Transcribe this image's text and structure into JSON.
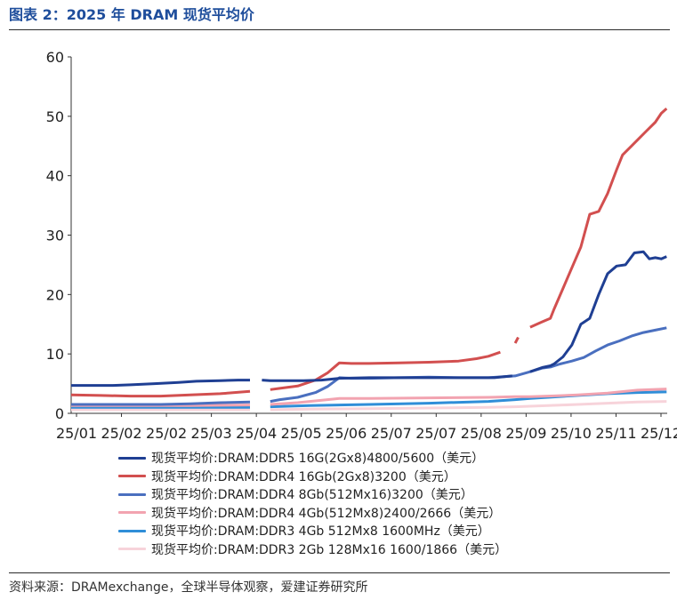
{
  "header": {
    "title": "图表 2：2025 年 DRAM 现货平均价"
  },
  "footer": {
    "source": "资料来源：DRAMexchange，全球半导体观察，爱建证券研究所"
  },
  "chart_data": {
    "type": "line",
    "title": "",
    "xlabel": "",
    "ylabel": "",
    "ylim": [
      0,
      60
    ],
    "yticks": [
      0,
      10,
      20,
      30,
      40,
      50,
      60
    ],
    "xlim": [
      0,
      100
    ],
    "x_tick_labels": [
      "25/01",
      "25/02",
      "25/02",
      "25/03",
      "25/04",
      "25/05",
      "25/06",
      "25/07",
      "25/07",
      "25/08",
      "25/09",
      "25/10",
      "25/11",
      "25/12"
    ],
    "grid": false,
    "legend_position": "bottom",
    "series": [
      {
        "name": "现货平均价:DRAM:DDR5 16G(2Gx8)4800/5600（美元）",
        "color": "#1f3f93",
        "x": [
          0,
          3,
          7,
          10,
          14,
          18,
          21,
          25,
          28,
          30,
          32,
          33.4,
          34,
          36,
          39,
          42,
          45,
          50,
          55,
          60,
          64,
          68,
          71,
          74,
          77,
          79,
          80.4,
          81,
          82.5,
          84,
          85.5,
          87,
          88.5,
          90,
          91.5,
          93,
          94.5,
          96,
          97,
          98,
          99,
          99.9
        ],
        "values": [
          4.7,
          4.7,
          4.7,
          4.8,
          5.0,
          5.2,
          5.4,
          5.5,
          5.6,
          5.6,
          5.6,
          5.5,
          5.5,
          5.5,
          5.5,
          5.6,
          5.9,
          6.0,
          6.0,
          6.0,
          6.0,
          6.0,
          6.0,
          6.3,
          7.0,
          7.7,
          8.0,
          8.3,
          9.5,
          11.5,
          15.0,
          16.0,
          20.0,
          23.5,
          24.8,
          25.0,
          27.0,
          27.2,
          26.0,
          26.2,
          26.0,
          26.4
        ],
        "gaps": [
          [
            30.2,
            33.0
          ],
          [
            74.5,
            75.9
          ]
        ]
      },
      {
        "name": "现货平均价:DRAM:DDR4 16Gb(2Gx8)3200（美元）",
        "color": "#d24f4f",
        "x": [
          0,
          5,
          10,
          15,
          20,
          25,
          30,
          33.4,
          35,
          38,
          41,
          43,
          45,
          47,
          50,
          55,
          60,
          65,
          68,
          70,
          72,
          74.5,
          75,
          77,
          79,
          80.4,
          81,
          82.5,
          84,
          85.5,
          87,
          88.5,
          90,
          91.5,
          92.5,
          94,
          95,
          96.5,
          98,
          99,
          99.9
        ],
        "values": [
          3.1,
          3.0,
          2.9,
          2.9,
          3.1,
          3.3,
          3.7,
          4.0,
          4.2,
          4.6,
          5.6,
          6.8,
          8.5,
          8.4,
          8.4,
          8.5,
          8.6,
          8.8,
          9.2,
          9.6,
          10.3,
          11.8,
          12.8,
          14.5,
          15.4,
          16.0,
          17.5,
          21.0,
          24.5,
          28.0,
          33.5,
          34.0,
          37.0,
          41.0,
          43.5,
          45.0,
          46.0,
          47.5,
          49.0,
          50.5,
          51.3
        ],
        "gaps": [
          [
            30.2,
            33.0
          ],
          [
            72.6,
            73.0
          ],
          [
            76.0,
            78.6
          ]
        ]
      },
      {
        "name": "现货平均价:DRAM:DDR4 8Gb(512Mx16)3200（美元）",
        "color": "#4a6fbf",
        "x": [
          0,
          5,
          10,
          15,
          20,
          25,
          30,
          33.4,
          35,
          38,
          41,
          43,
          45,
          47,
          50,
          55,
          60,
          65,
          70,
          74.5,
          77,
          79,
          80.4,
          82,
          84,
          86,
          88,
          90,
          92,
          94,
          96,
          98,
          99.9
        ],
        "values": [
          1.5,
          1.5,
          1.5,
          1.5,
          1.6,
          1.8,
          1.9,
          2.0,
          2.3,
          2.7,
          3.5,
          4.5,
          6.0,
          5.9,
          5.9,
          6.0,
          6.1,
          6.0,
          6.0,
          6.3,
          7.0,
          7.6,
          7.8,
          8.3,
          8.8,
          9.4,
          10.5,
          11.5,
          12.2,
          13.0,
          13.6,
          14.0,
          14.4
        ],
        "gaps": [
          [
            30.2,
            33.0
          ]
        ]
      },
      {
        "name": "现货平均价:DRAM:DDR4 4Gb(512Mx8)2400/2666（美元）",
        "color": "#f2a3b0",
        "x": [
          0,
          10,
          20,
          30,
          33.4,
          38,
          43,
          45,
          50,
          60,
          70,
          74.5,
          77,
          80,
          85,
          90,
          95,
          99.9
        ],
        "values": [
          1.3,
          1.3,
          1.3,
          1.4,
          1.5,
          1.8,
          2.3,
          2.5,
          2.5,
          2.6,
          2.7,
          2.8,
          2.8,
          2.9,
          3.1,
          3.4,
          3.9,
          4.1
        ],
        "gaps": [
          [
            30.2,
            33.0
          ]
        ]
      },
      {
        "name": "现货平均价:DRAM:DDR3 4Gb 512Mx8 1600MHz（美元）",
        "color": "#2f8ed8",
        "x": [
          0,
          10,
          20,
          30,
          33.4,
          40,
          50,
          60,
          70,
          74.5,
          77,
          80,
          85,
          90,
          95,
          99.9
        ],
        "values": [
          1.0,
          1.0,
          1.0,
          1.0,
          1.1,
          1.3,
          1.5,
          1.7,
          2.0,
          2.3,
          2.5,
          2.7,
          3.0,
          3.3,
          3.5,
          3.6
        ],
        "gaps": [
          [
            30.2,
            33.0
          ]
        ]
      },
      {
        "name": "现货平均价:DRAM:DDR3 2Gb 128Mx16 1600/1866（美元）",
        "color": "#f7d3da",
        "x": [
          0,
          10,
          20,
          30,
          33.4,
          40,
          50,
          60,
          70,
          74.5,
          77,
          80,
          85,
          90,
          95,
          99.9
        ],
        "values": [
          0.6,
          0.6,
          0.6,
          0.6,
          0.6,
          0.7,
          0.8,
          0.9,
          1.0,
          1.1,
          1.2,
          1.3,
          1.5,
          1.7,
          1.9,
          2.0
        ],
        "gaps": [
          [
            30.2,
            33.0
          ]
        ]
      }
    ]
  }
}
